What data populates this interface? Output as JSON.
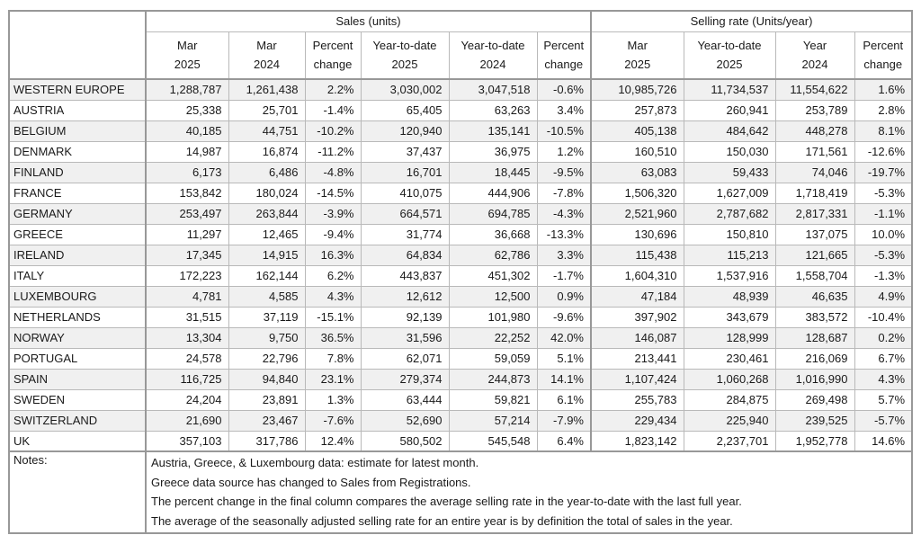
{
  "colors": {
    "stripe_row": "#f0f0f0",
    "grid_line": "#b9b9b9",
    "section_border": "#989898",
    "text": "#1a1a1a"
  },
  "table": {
    "sections": [
      {
        "label": "Sales (units)"
      },
      {
        "label": "Selling rate (Units/year)"
      }
    ],
    "sub_headers": {
      "sales": [
        {
          "line1": "Mar",
          "line2": "2025"
        },
        {
          "line1": "Mar",
          "line2": "2024"
        },
        {
          "line1": "Percent",
          "line2": "change"
        },
        {
          "line1": "Year-to-date",
          "line2": "2025"
        },
        {
          "line1": "Year-to-date",
          "line2": "2024"
        },
        {
          "line1": "Percent",
          "line2": "change"
        }
      ],
      "selling_rate": [
        {
          "line1": "Mar",
          "line2": "2025"
        },
        {
          "line1": "Year-to-date",
          "line2": "2025"
        },
        {
          "line1": "Year",
          "line2": "2024"
        },
        {
          "line1": "Percent",
          "line2": "change"
        }
      ]
    },
    "rows": [
      {
        "country": "WESTERN EUROPE",
        "values": [
          "1,288,787",
          "1,261,438",
          "2.2%",
          "3,030,002",
          "3,047,518",
          "-0.6%",
          "10,985,726",
          "11,734,537",
          "11,554,622",
          "1.6%"
        ]
      },
      {
        "country": "AUSTRIA",
        "values": [
          "25,338",
          "25,701",
          "-1.4%",
          "65,405",
          "63,263",
          "3.4%",
          "257,873",
          "260,941",
          "253,789",
          "2.8%"
        ]
      },
      {
        "country": "BELGIUM",
        "values": [
          "40,185",
          "44,751",
          "-10.2%",
          "120,940",
          "135,141",
          "-10.5%",
          "405,138",
          "484,642",
          "448,278",
          "8.1%"
        ]
      },
      {
        "country": "DENMARK",
        "values": [
          "14,987",
          "16,874",
          "-11.2%",
          "37,437",
          "36,975",
          "1.2%",
          "160,510",
          "150,030",
          "171,561",
          "-12.6%"
        ]
      },
      {
        "country": "FINLAND",
        "values": [
          "6,173",
          "6,486",
          "-4.8%",
          "16,701",
          "18,445",
          "-9.5%",
          "63,083",
          "59,433",
          "74,046",
          "-19.7%"
        ]
      },
      {
        "country": "FRANCE",
        "values": [
          "153,842",
          "180,024",
          "-14.5%",
          "410,075",
          "444,906",
          "-7.8%",
          "1,506,320",
          "1,627,009",
          "1,718,419",
          "-5.3%"
        ]
      },
      {
        "country": "GERMANY",
        "values": [
          "253,497",
          "263,844",
          "-3.9%",
          "664,571",
          "694,785",
          "-4.3%",
          "2,521,960",
          "2,787,682",
          "2,817,331",
          "-1.1%"
        ]
      },
      {
        "country": "GREECE",
        "values": [
          "11,297",
          "12,465",
          "-9.4%",
          "31,774",
          "36,668",
          "-13.3%",
          "130,696",
          "150,810",
          "137,075",
          "10.0%"
        ]
      },
      {
        "country": "IRELAND",
        "values": [
          "17,345",
          "14,915",
          "16.3%",
          "64,834",
          "62,786",
          "3.3%",
          "115,438",
          "115,213",
          "121,665",
          "-5.3%"
        ]
      },
      {
        "country": "ITALY",
        "values": [
          "172,223",
          "162,144",
          "6.2%",
          "443,837",
          "451,302",
          "-1.7%",
          "1,604,310",
          "1,537,916",
          "1,558,704",
          "-1.3%"
        ]
      },
      {
        "country": "LUXEMBOURG",
        "values": [
          "4,781",
          "4,585",
          "4.3%",
          "12,612",
          "12,500",
          "0.9%",
          "47,184",
          "48,939",
          "46,635",
          "4.9%"
        ]
      },
      {
        "country": "NETHERLANDS",
        "values": [
          "31,515",
          "37,119",
          "-15.1%",
          "92,139",
          "101,980",
          "-9.6%",
          "397,902",
          "343,679",
          "383,572",
          "-10.4%"
        ]
      },
      {
        "country": "NORWAY",
        "values": [
          "13,304",
          "9,750",
          "36.5%",
          "31,596",
          "22,252",
          "42.0%",
          "146,087",
          "128,999",
          "128,687",
          "0.2%"
        ]
      },
      {
        "country": "PORTUGAL",
        "values": [
          "24,578",
          "22,796",
          "7.8%",
          "62,071",
          "59,059",
          "5.1%",
          "213,441",
          "230,461",
          "216,069",
          "6.7%"
        ]
      },
      {
        "country": "SPAIN",
        "values": [
          "116,725",
          "94,840",
          "23.1%",
          "279,374",
          "244,873",
          "14.1%",
          "1,107,424",
          "1,060,268",
          "1,016,990",
          "4.3%"
        ]
      },
      {
        "country": "SWEDEN",
        "values": [
          "24,204",
          "23,891",
          "1.3%",
          "63,444",
          "59,821",
          "6.1%",
          "255,783",
          "284,875",
          "269,498",
          "5.7%"
        ]
      },
      {
        "country": "SWITZERLAND",
        "values": [
          "21,690",
          "23,467",
          "-7.6%",
          "52,690",
          "57,214",
          "-7.9%",
          "229,434",
          "225,940",
          "239,525",
          "-5.7%"
        ]
      },
      {
        "country": "UK",
        "values": [
          "357,103",
          "317,786",
          "12.4%",
          "580,502",
          "545,548",
          "6.4%",
          "1,823,142",
          "2,237,701",
          "1,952,778",
          "14.6%"
        ]
      }
    ]
  },
  "notes": {
    "label": "Notes:",
    "lines": [
      "Austria, Greece, & Luxembourg data: estimate for latest month.",
      "Greece data source has changed to Sales from Registrations.",
      "The percent change in the final column compares the average selling rate in the year-to-date with the last full year.",
      "The average of the seasonally adjusted selling rate for an entire year is by definition the total of sales in the year."
    ]
  }
}
